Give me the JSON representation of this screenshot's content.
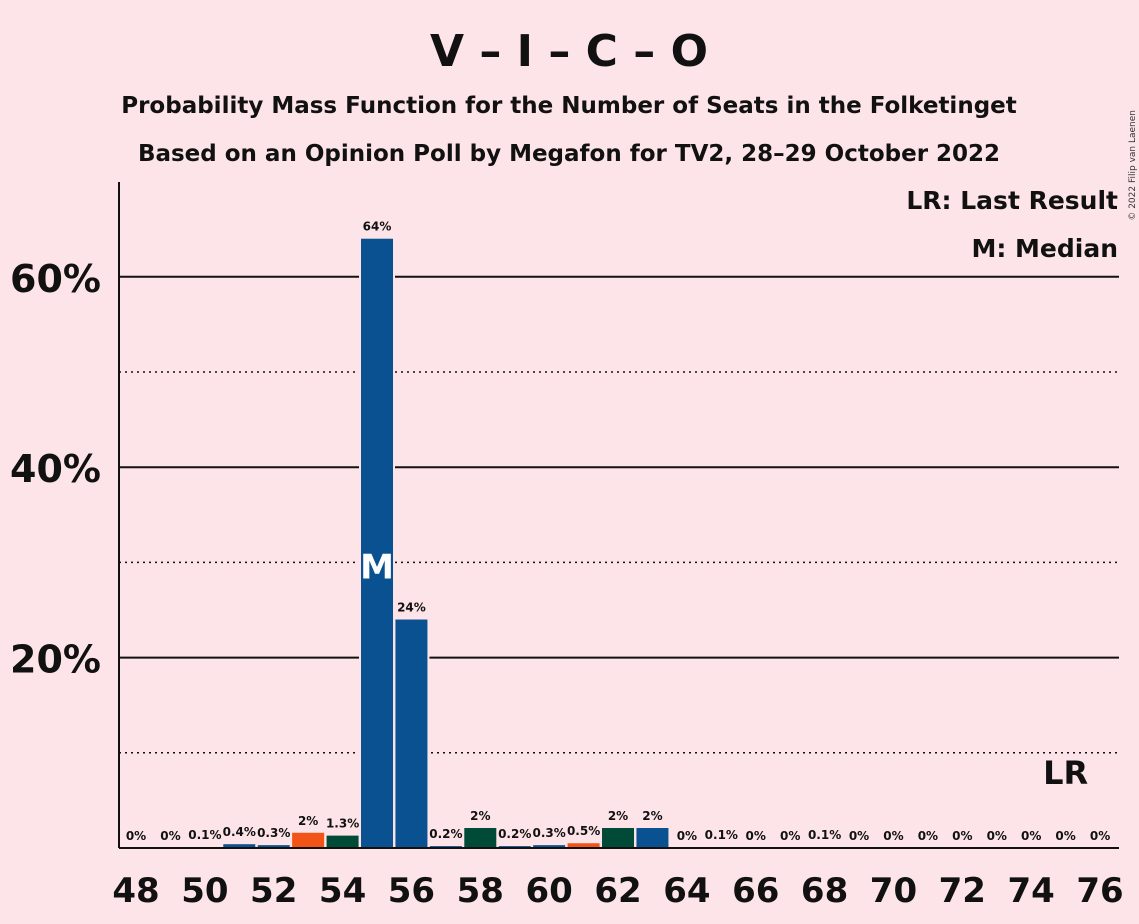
{
  "copyright": "© 2022 Filip van Laenen",
  "chart_data": {
    "type": "bar",
    "title": "V – I – C – O",
    "subtitle_1": "Probability Mass Function for the Number of Seats in the Folketinget",
    "subtitle_2": "Based on an Opinion Poll by Megafon for TV2, 28–29 October 2022",
    "legend": {
      "last_result": "LR: Last Result",
      "median": "M: Median",
      "placement": "top-right"
    },
    "ylim": [
      0,
      70
    ],
    "y_ticks": [
      {
        "value": 20,
        "label": "20%"
      },
      {
        "value": 40,
        "label": "40%"
      },
      {
        "value": 60,
        "label": "60%"
      }
    ],
    "y_minor_gridlines": [
      10,
      30,
      50
    ],
    "x_tick_labels": [
      "48",
      "50",
      "52",
      "54",
      "56",
      "58",
      "60",
      "62",
      "64",
      "66",
      "68",
      "70",
      "72",
      "74",
      "76"
    ],
    "bars": [
      {
        "seats": 48,
        "value": 0,
        "label": "0%",
        "color": "#0a5191"
      },
      {
        "seats": 49,
        "value": 0,
        "label": "0%",
        "color": "#0a5191"
      },
      {
        "seats": 50,
        "value": 0.1,
        "label": "0.1%",
        "color": "#0a5191"
      },
      {
        "seats": 51,
        "value": 0.4,
        "label": "0.4%",
        "color": "#0a5191"
      },
      {
        "seats": 52,
        "value": 0.3,
        "label": "0.3%",
        "color": "#0a5191"
      },
      {
        "seats": 53,
        "value": 1.6,
        "label": "2%",
        "color": "#f25317"
      },
      {
        "seats": 54,
        "value": 1.3,
        "label": "1.3%",
        "color": "#004a38"
      },
      {
        "seats": 55,
        "value": 64,
        "label": "64%",
        "color": "#0a5191",
        "median": true
      },
      {
        "seats": 56,
        "value": 24,
        "label": "24%",
        "color": "#0a5191"
      },
      {
        "seats": 57,
        "value": 0.2,
        "label": "0.2%",
        "color": "#0a5191"
      },
      {
        "seats": 58,
        "value": 2.1,
        "label": "2%",
        "color": "#004a38"
      },
      {
        "seats": 59,
        "value": 0.2,
        "label": "0.2%",
        "color": "#0a5191"
      },
      {
        "seats": 60,
        "value": 0.3,
        "label": "0.3%",
        "color": "#0a5191"
      },
      {
        "seats": 61,
        "value": 0.5,
        "label": "0.5%",
        "color": "#f25317"
      },
      {
        "seats": 62,
        "value": 2.1,
        "label": "2%",
        "color": "#004a38"
      },
      {
        "seats": 63,
        "value": 2.1,
        "label": "2%",
        "color": "#0a5191"
      },
      {
        "seats": 64,
        "value": 0,
        "label": "0%",
        "color": "#0a5191"
      },
      {
        "seats": 65,
        "value": 0.1,
        "label": "0.1%",
        "color": "#0a5191"
      },
      {
        "seats": 66,
        "value": 0,
        "label": "0%",
        "color": "#0a5191"
      },
      {
        "seats": 67,
        "value": 0,
        "label": "0%",
        "color": "#0a5191"
      },
      {
        "seats": 68,
        "value": 0.1,
        "label": "0.1%",
        "color": "#0a5191"
      },
      {
        "seats": 69,
        "value": 0,
        "label": "0%",
        "color": "#0a5191"
      },
      {
        "seats": 70,
        "value": 0,
        "label": "0%",
        "color": "#0a5191"
      },
      {
        "seats": 71,
        "value": 0,
        "label": "0%",
        "color": "#0a5191"
      },
      {
        "seats": 72,
        "value": 0,
        "label": "0%",
        "color": "#0a5191"
      },
      {
        "seats": 73,
        "value": 0,
        "label": "0%",
        "color": "#0a5191"
      },
      {
        "seats": 74,
        "value": 0,
        "label": "0%",
        "color": "#0a5191"
      },
      {
        "seats": 75,
        "value": 0,
        "label": "0%",
        "color": "#0a5191"
      },
      {
        "seats": 76,
        "value": 0,
        "label": "0%",
        "color": "#0a5191"
      }
    ],
    "median_marker": "M",
    "last_result_marker": "LR",
    "last_result_seats": 75
  }
}
